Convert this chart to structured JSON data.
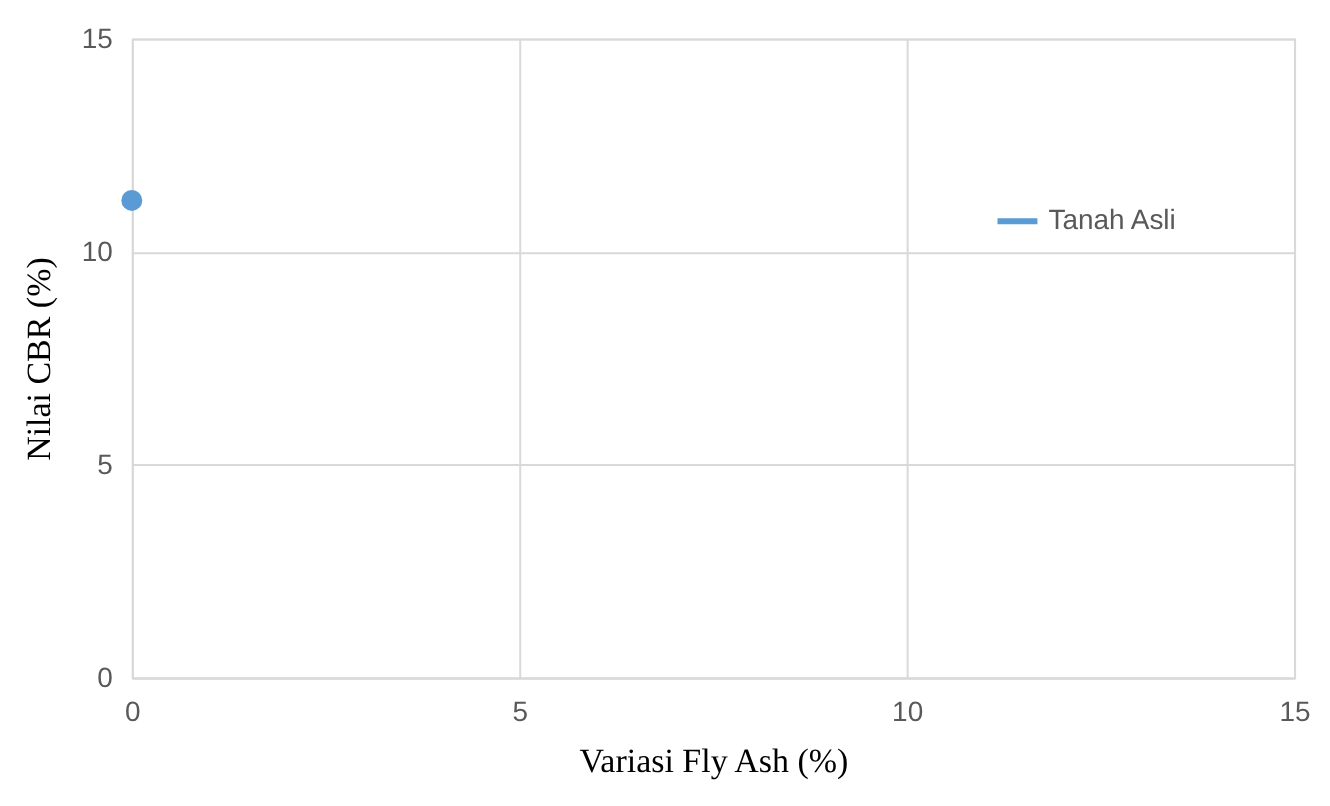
{
  "chart_data": {
    "type": "line",
    "xlabel": "Variasi Fly Ash (%)",
    "ylabel": "Nilai CBR (%)",
    "x": [
      0
    ],
    "series": [
      {
        "name": "Tanah Asli",
        "color": "#5b9bd5",
        "values": [
          11.2
        ]
      }
    ],
    "xlim": [
      0,
      15
    ],
    "xticks": [
      0,
      5,
      10,
      15
    ],
    "ylim": [
      0,
      15
    ],
    "yticks": [
      0,
      5,
      10,
      15
    ],
    "grid": true,
    "legend": "right",
    "marker": "circle",
    "line_style": "solid"
  }
}
